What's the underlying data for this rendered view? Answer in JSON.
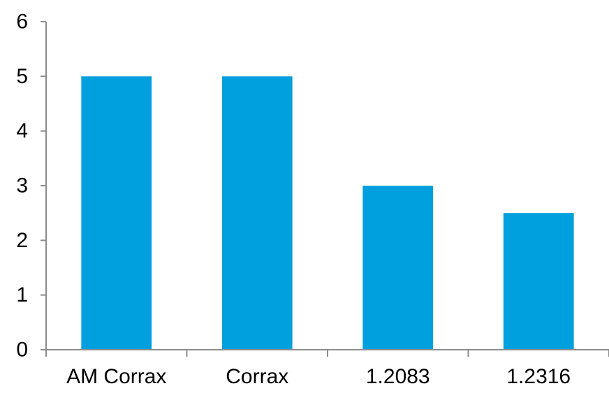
{
  "chart_data": {
    "type": "bar",
    "categories": [
      "AM Corrax",
      "Corrax",
      "1.2083",
      "1.2316"
    ],
    "values": [
      5,
      5,
      3,
      2.5
    ],
    "title": "",
    "xlabel": "",
    "ylabel": "",
    "ylim": [
      0,
      6
    ],
    "yticks": [
      "0",
      "1",
      "2",
      "3",
      "4",
      "5",
      "6"
    ],
    "grid": false,
    "legend": "none",
    "bar_color": "#009fde",
    "axis_color": "#8c8c8c"
  }
}
